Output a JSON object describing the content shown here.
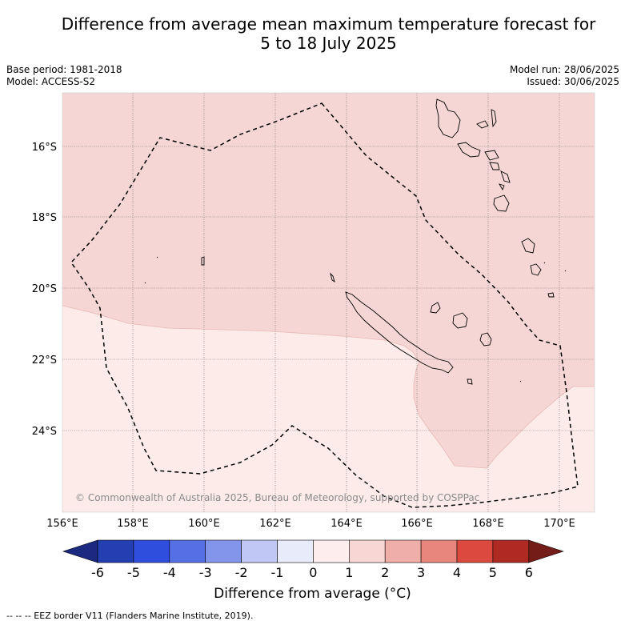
{
  "title_line1": "Difference from average mean maximum temperature forecast for",
  "title_line2": "5 to 18 July 2025",
  "meta_left": [
    "Base period: 1981-2018",
    "Model: ACCESS-S2"
  ],
  "meta_right": [
    "Model run: 28/06/2025",
    "Issued: 30/06/2025"
  ],
  "credit": "© Commonwealth of Australia 2025, Bureau of Meteorology, supported by COSPPac",
  "footnote": "-- -- -- EEZ border V11 (Flanders Marine Institute, 2019).",
  "colorbar": {
    "title": "Difference from average (°C)",
    "ticks": [
      "-6",
      "-5",
      "-4",
      "-3",
      "-2",
      "-1",
      "0",
      "1",
      "2",
      "3",
      "4",
      "5",
      "6"
    ],
    "colors": [
      "#1b2a80",
      "#233fb2",
      "#2f4edd",
      "#5570e4",
      "#8395ea",
      "#c1c7f4",
      "#e8ebfa",
      "#fdeeed",
      "#f8d6d3",
      "#f0aea8",
      "#e8867e",
      "#dc4a3f",
      "#ae2a22",
      "#741c18"
    ]
  },
  "map": {
    "lat_labels": [
      "16°S",
      "18°S",
      "20°S",
      "22°S",
      "24°S"
    ],
    "lon_labels": [
      "156°E",
      "158°E",
      "160°E",
      "162°E",
      "164°E",
      "166°E",
      "168°E",
      "170°E"
    ],
    "anomaly_classes": [
      "0 to 1",
      "1 to 2"
    ]
  }
}
